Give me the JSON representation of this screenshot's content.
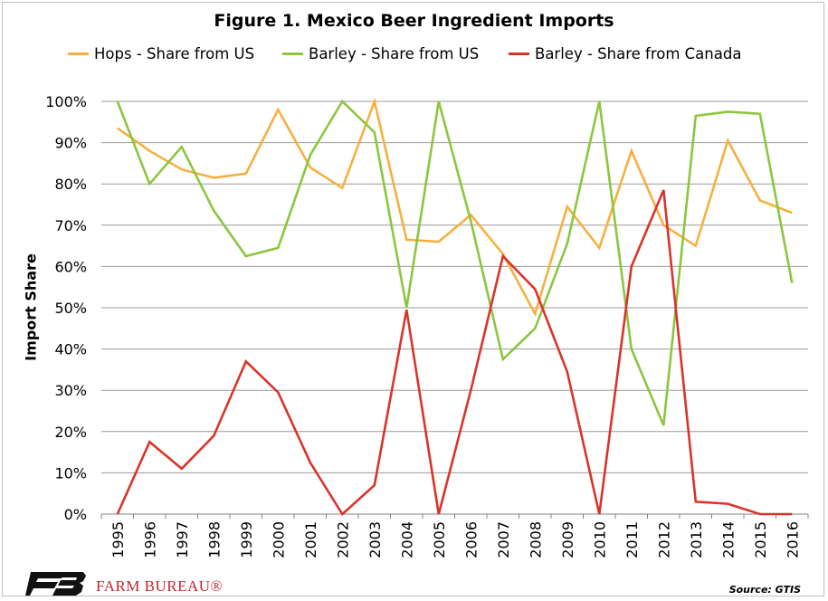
{
  "chart_data": {
    "type": "line",
    "title": "Figure 1. Mexico Beer Ingredient Imports",
    "ylabel": "Import Share",
    "xlabel": "",
    "ylim": [
      0,
      100
    ],
    "yticks": [
      "0%",
      "10%",
      "20%",
      "30%",
      "40%",
      "50%",
      "60%",
      "70%",
      "80%",
      "90%",
      "100%"
    ],
    "categories": [
      "1995",
      "1996",
      "1997",
      "1998",
      "1999",
      "2000",
      "2001",
      "2002",
      "2003",
      "2004",
      "2005",
      "2006",
      "2007",
      "2008",
      "2009",
      "2010",
      "2011",
      "2012",
      "2013",
      "2014",
      "2015",
      "2016"
    ],
    "legend_position": "top",
    "grid": true,
    "series": [
      {
        "name": "Hops - Share from US",
        "color": "#f5b041",
        "values": [
          93.5,
          88,
          83.5,
          81.5,
          82.5,
          98,
          84,
          79,
          100,
          66.5,
          66,
          72.5,
          63,
          48.5,
          74.5,
          64.5,
          88,
          70,
          65,
          90.5,
          76,
          73
        ]
      },
      {
        "name": "Barley - Share from US",
        "color": "#8cc63f",
        "values": [
          100,
          80,
          89,
          73.5,
          62.5,
          64.5,
          87,
          100,
          92.5,
          50,
          100,
          71,
          37.5,
          45,
          65.5,
          100,
          40,
          21.5,
          96.5,
          97.5,
          97,
          56
        ]
      },
      {
        "name": "Barley - Share from Canada",
        "color": "#d9342b",
        "values": [
          0,
          17.5,
          11,
          19,
          37,
          29.5,
          12.5,
          0,
          7,
          49.5,
          0,
          30,
          62.5,
          54.5,
          34.5,
          0,
          60,
          78.5,
          3,
          2.5,
          0,
          0
        ]
      }
    ]
  },
  "source": "Source: GTIS",
  "logo": {
    "text": "FARM BUREAU®",
    "color": "#c0272d"
  }
}
